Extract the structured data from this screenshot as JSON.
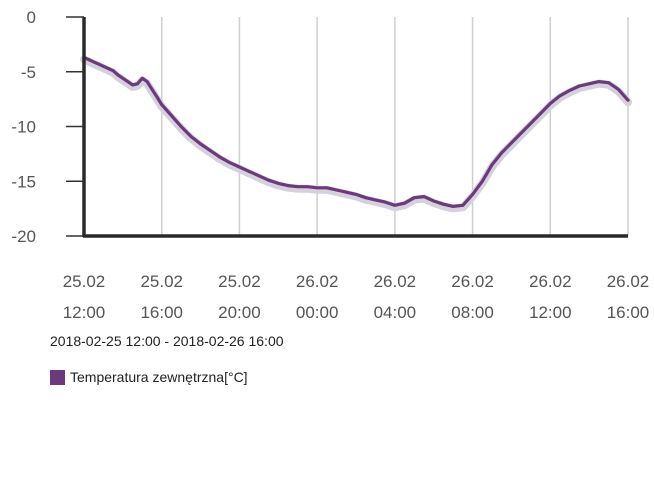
{
  "chart_data": {
    "type": "line",
    "range_label": "2018-02-25 12:00 - 2018-02-26 16:00",
    "ylim": [
      -20,
      0
    ],
    "yticks": [
      {
        "value": 0,
        "label": "0"
      },
      {
        "value": -5,
        "label": "-5"
      },
      {
        "value": -10,
        "label": "-10"
      },
      {
        "value": -15,
        "label": "-15"
      },
      {
        "value": -20,
        "label": "-20"
      }
    ],
    "xlim": [
      0,
      28
    ],
    "xticks": [
      {
        "value": 0,
        "line1": "25.02",
        "line2": "12:00"
      },
      {
        "value": 4,
        "line1": "25.02",
        "line2": "16:00"
      },
      {
        "value": 8,
        "line1": "25.02",
        "line2": "20:00"
      },
      {
        "value": 12,
        "line1": "26.02",
        "line2": "00:00"
      },
      {
        "value": 16,
        "line1": "26.02",
        "line2": "04:00"
      },
      {
        "value": 20,
        "line1": "26.02",
        "line2": "08:00"
      },
      {
        "value": 24,
        "line1": "26.02",
        "line2": "12:00"
      },
      {
        "value": 28,
        "line1": "26.02",
        "line2": "16:00"
      }
    ],
    "grid": true,
    "legend_position": "bottom-left",
    "series": [
      {
        "name": "Temperatura zewnętrzna[°C]",
        "color": "#6b3a7d",
        "x": [
          0,
          0.25,
          0.5,
          0.75,
          1,
          1.25,
          1.5,
          1.75,
          2,
          2.25,
          2.5,
          2.75,
          3,
          3.25,
          3.5,
          3.75,
          4,
          4.5,
          5,
          5.5,
          6,
          6.5,
          7,
          7.5,
          8,
          8.5,
          9,
          9.5,
          10,
          10.5,
          11,
          11.5,
          12,
          12.5,
          13,
          13.5,
          14,
          14.5,
          15,
          15.5,
          16,
          16.5,
          17,
          17.5,
          18,
          18.5,
          19,
          19.5,
          20,
          20.5,
          21,
          21.5,
          22,
          22.5,
          23,
          23.5,
          24,
          24.5,
          25,
          25.5,
          26,
          26.5,
          27,
          27.5,
          28
        ],
        "y": [
          -3.7,
          -3.9,
          -4.1,
          -4.3,
          -4.5,
          -4.7,
          -4.9,
          -5.3,
          -5.6,
          -5.9,
          -6.2,
          -6.1,
          -5.6,
          -5.9,
          -6.6,
          -7.3,
          -8.0,
          -9.0,
          -10.0,
          -10.9,
          -11.6,
          -12.2,
          -12.8,
          -13.3,
          -13.7,
          -14.1,
          -14.5,
          -14.9,
          -15.2,
          -15.4,
          -15.5,
          -15.5,
          -15.6,
          -15.6,
          -15.8,
          -16.0,
          -16.2,
          -16.5,
          -16.7,
          -16.9,
          -17.2,
          -17.0,
          -16.5,
          -16.4,
          -16.8,
          -17.1,
          -17.3,
          -17.2,
          -16.2,
          -15.0,
          -13.5,
          -12.4,
          -11.5,
          -10.6,
          -9.7,
          -8.8,
          -7.9,
          -7.2,
          -6.7,
          -6.3,
          -6.1,
          -5.9,
          -6.0,
          -6.6,
          -7.6
        ]
      }
    ]
  }
}
